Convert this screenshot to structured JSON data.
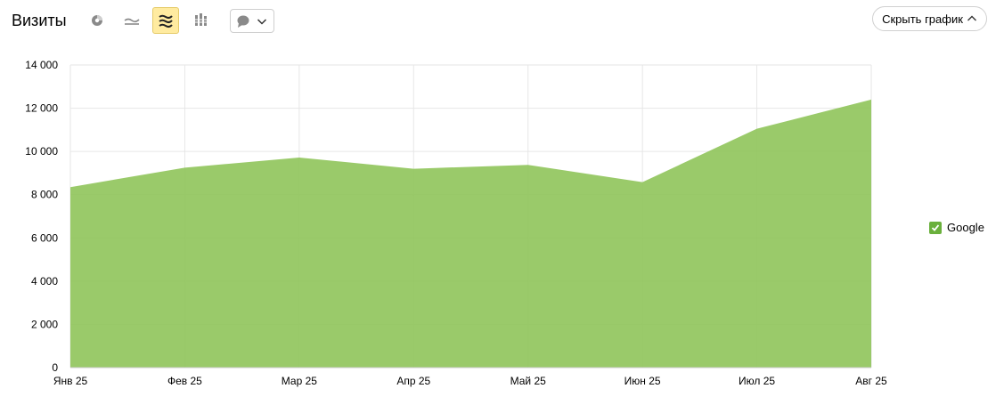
{
  "header": {
    "title": "Визиты",
    "hide_chart_label": "Скрыть график"
  },
  "toolbar": {
    "buttons": [
      {
        "icon": "pie-chart-icon",
        "active": false
      },
      {
        "icon": "line-chart-icon",
        "active": false
      },
      {
        "icon": "area-chart-icon",
        "active": true
      },
      {
        "icon": "column-chart-icon",
        "active": false
      }
    ],
    "annotation_dropdown_icon": "comment-icon"
  },
  "colors": {
    "series_fill": "#8fc45a",
    "series_fill_opacity": 0.9,
    "grid": "#e6e6e6",
    "active_button_bg": "#ffeba0",
    "checkbox": "#6ab03c"
  },
  "chart_data": {
    "type": "area",
    "x": [
      "Янв 25",
      "Фев 25",
      "Мар 25",
      "Апр 25",
      "Май 25",
      "Июн 25",
      "Июл 25",
      "Авг 25"
    ],
    "series": [
      {
        "name": "Google",
        "values": [
          8350,
          9250,
          9720,
          9200,
          9380,
          8580,
          11050,
          12400
        ]
      }
    ],
    "ylim": [
      0,
      14000
    ],
    "yticks": [
      0,
      2000,
      4000,
      6000,
      8000,
      10000,
      12000,
      14000
    ],
    "ytick_labels": [
      "0",
      "2 000",
      "4 000",
      "6 000",
      "8 000",
      "10 000",
      "12 000",
      "14 000"
    ],
    "grid": true,
    "legend_position": "right"
  }
}
